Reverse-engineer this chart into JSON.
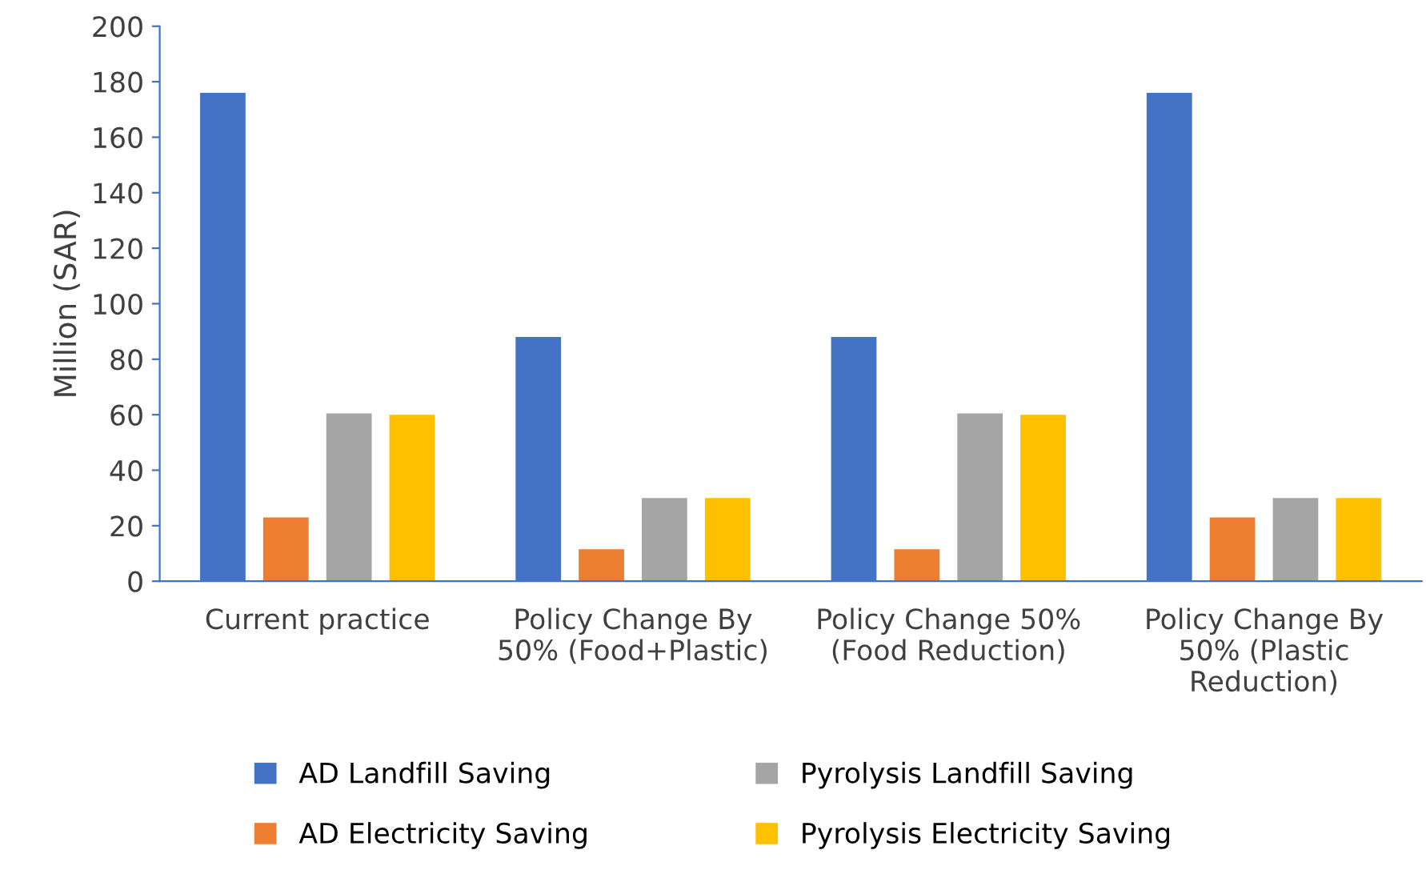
{
  "chart_data": {
    "type": "bar",
    "ylabel": "Million (SAR)",
    "categories": [
      "Current practice",
      "Policy Change By\n50% (Food+Plastic)",
      "Policy Change 50%\n(Food Reduction)",
      "Policy Change By\n50% (Plastic\nReduction)"
    ],
    "series": [
      {
        "name": "AD Landfill Saving",
        "color": "#4472c4",
        "values": [
          176,
          88,
          88,
          176
        ]
      },
      {
        "name": "AD Electricity Saving",
        "color": "#ed7d31",
        "values": [
          23,
          11.5,
          11.5,
          23
        ]
      },
      {
        "name": "Pyrolysis Landfill Saving",
        "color": "#a5a5a5",
        "values": [
          60.5,
          30,
          60.5,
          30
        ]
      },
      {
        "name": "Pyrolysis Electricity Saving",
        "color": "#ffc000",
        "values": [
          60,
          30,
          60,
          30
        ]
      }
    ],
    "ylim": [
      0,
      200
    ],
    "yticks": [
      0,
      20,
      40,
      60,
      80,
      100,
      120,
      140,
      160,
      180,
      200
    ],
    "grid": false,
    "legend": "bottom"
  }
}
